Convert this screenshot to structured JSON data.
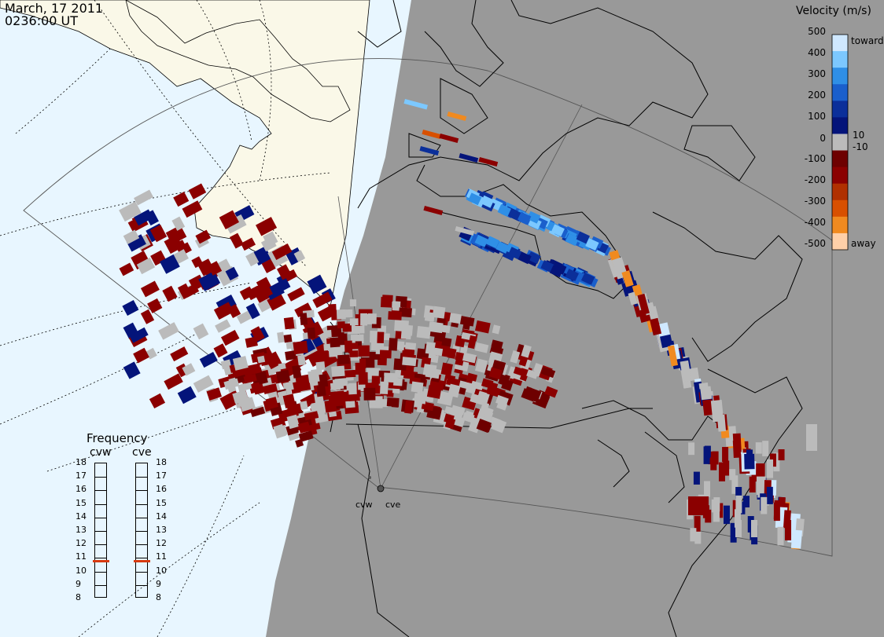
{
  "header": {
    "date": "March, 17 2011",
    "time": "0236:00 UT"
  },
  "velocity_legend": {
    "title": "Velocity (m/s)",
    "ticks": [
      "500",
      "400",
      "300",
      "200",
      "100",
      "10",
      "0",
      "-10",
      "-100",
      "-200",
      "-300",
      "-400",
      "-500"
    ],
    "toward_label": "toward",
    "away_label": "away",
    "colors": {
      "v500": "#cfe8ff",
      "v400": "#7cc8ff",
      "v300": "#2f8fe6",
      "v200": "#1a5fcc",
      "v100": "#0b2f9a",
      "v10": "#04147a",
      "zero": "#bbbbbb",
      "vm10": "#6e0000",
      "vm100": "#8b0000",
      "vm200": "#b03000",
      "vm300": "#d85000",
      "vm400": "#f08a20",
      "vm500": "#ffd0a8"
    }
  },
  "frequency_panel": {
    "title": "Frequency",
    "radars": [
      {
        "name": "cvw",
        "selected_mhz": 10.8
      },
      {
        "name": "cve",
        "selected_mhz": 10.8
      }
    ],
    "scale": [
      "18",
      "17",
      "16",
      "15",
      "14",
      "13",
      "12",
      "11",
      "10",
      "9",
      "8"
    ],
    "marker_color": "#d83a10"
  },
  "sites": [
    "cvw",
    "cve"
  ],
  "map": {
    "night_shade_color": "#999999",
    "land_color": "#faf8e8",
    "ocean_color": "#e8f6ff",
    "ground_scatter_color": "#cccccc"
  }
}
